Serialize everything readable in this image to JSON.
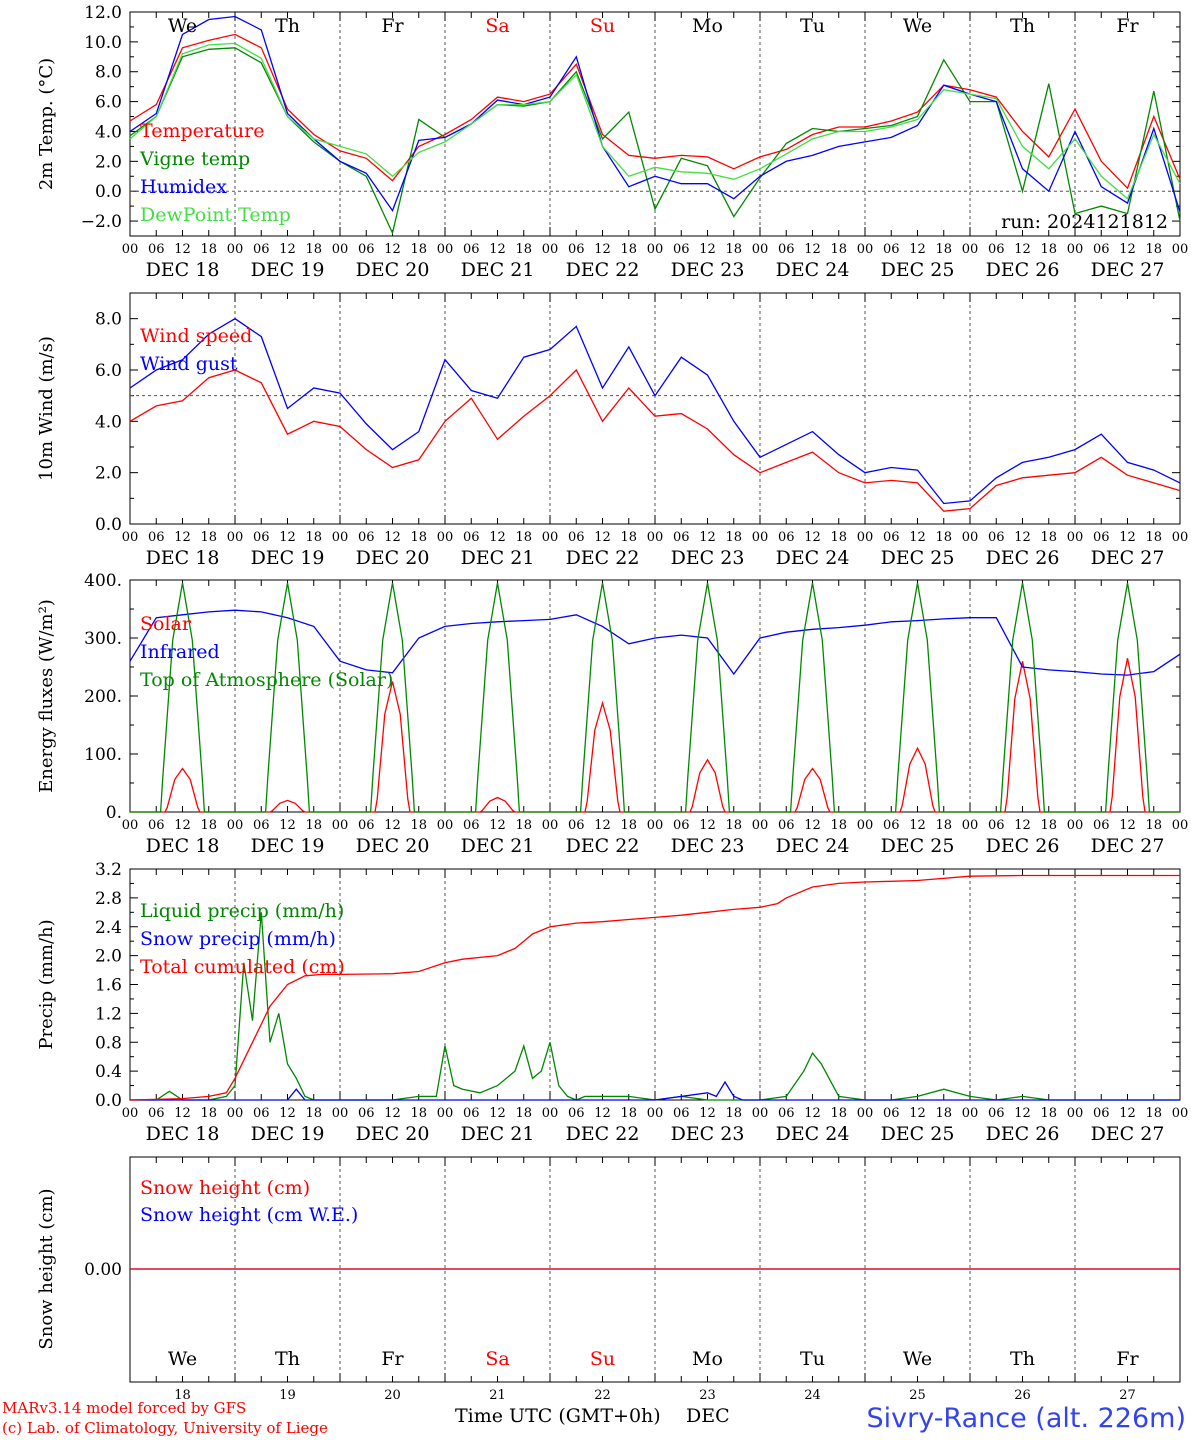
{
  "run_label": "run: 2024121812",
  "footer": {
    "credit_1": "MARv3.14 model forced by GFS",
    "credit_2": "(c) Lab. of Climatology, University of Liege",
    "time_axis": "Time UTC (GMT+0h)",
    "month": "DEC",
    "station": "Sivry-Rance (alt. 226m)"
  },
  "days": {
    "weekday_labels": [
      "We",
      "Th",
      "Fr",
      "Sa",
      "Su",
      "Mo",
      "Tu",
      "We",
      "Th",
      "Fr"
    ],
    "weekday_colors": [
      "#000000",
      "#000000",
      "#000000",
      "#ff0000",
      "#ff0000",
      "#000000",
      "#000000",
      "#000000",
      "#000000",
      "#000000"
    ],
    "date_labels": [
      "DEC 18",
      "DEC 19",
      "DEC 20",
      "DEC 21",
      "DEC 22",
      "DEC 23",
      "DEC 24",
      "DEC 25",
      "DEC 26",
      "DEC 27"
    ],
    "day_numbers": [
      "18",
      "19",
      "20",
      "21",
      "22",
      "23",
      "24",
      "25",
      "26",
      "27"
    ],
    "hour_ticks": [
      "00",
      "06",
      "12",
      "18"
    ],
    "end_hour": "00"
  },
  "chart_data": [
    {
      "type": "line",
      "ylabel": "2m Temp. (°C)",
      "ylim": [
        -3,
        12
      ],
      "yticks": [
        "12.0",
        "10.0",
        "8.0",
        "6.0",
        "4.0",
        "2.0",
        "0.0",
        "−2.0"
      ],
      "reference_line": 0,
      "x_unit": "hours since DEC 18 00 UTC",
      "series": [
        {
          "name": "Temperature",
          "color": "#ff0000",
          "x": [
            0,
            6,
            12,
            18,
            24,
            30,
            36,
            42,
            48,
            54,
            60,
            66,
            72,
            78,
            84,
            90,
            96,
            102,
            108,
            114,
            120,
            126,
            132,
            138,
            144,
            150,
            156,
            162,
            168,
            174,
            180,
            186,
            192,
            198,
            204,
            210,
            216,
            222,
            228,
            234,
            240
          ],
          "y": [
            4.7,
            5.8,
            9.6,
            10.1,
            10.5,
            9.6,
            5.5,
            3.8,
            2.7,
            2.2,
            0.7,
            3.0,
            3.8,
            4.8,
            6.3,
            6.0,
            6.5,
            8.5,
            3.8,
            2.4,
            2.2,
            2.4,
            2.3,
            1.5,
            2.3,
            2.8,
            3.8,
            4.3,
            4.3,
            4.7,
            5.3,
            7.1,
            6.8,
            6.3,
            4.0,
            2.3,
            5.5,
            2.0,
            0.2,
            5.0,
            0.8
          ]
        },
        {
          "name": "Vigne temp",
          "color": "#008800",
          "x": [
            0,
            6,
            12,
            18,
            24,
            30,
            36,
            42,
            48,
            54,
            60,
            66,
            72,
            78,
            84,
            90,
            96,
            102,
            108,
            114,
            120,
            126,
            132,
            138,
            144,
            150,
            156,
            162,
            168,
            174,
            180,
            186,
            192,
            198,
            204,
            210,
            216,
            222,
            228,
            234,
            240
          ],
          "y": [
            3.7,
            5.0,
            9.0,
            9.5,
            9.6,
            8.6,
            5.0,
            3.3,
            2.0,
            1.0,
            -2.8,
            4.8,
            3.6,
            4.5,
            5.8,
            5.7,
            6.0,
            8.0,
            3.5,
            5.3,
            -1.2,
            2.2,
            1.7,
            -1.7,
            0.9,
            3.2,
            4.2,
            4.0,
            4.2,
            4.4,
            5.0,
            8.8,
            6.0,
            6.0,
            0.0,
            7.2,
            -1.5,
            -1.0,
            -1.5,
            6.7,
            -2.0
          ]
        },
        {
          "name": "Humidex",
          "color": "#0000ff",
          "x": [
            0,
            6,
            12,
            18,
            24,
            30,
            36,
            42,
            48,
            54,
            60,
            66,
            72,
            78,
            84,
            90,
            96,
            102,
            108,
            114,
            120,
            126,
            132,
            138,
            144,
            150,
            156,
            162,
            168,
            174,
            180,
            186,
            192,
            198,
            204,
            210,
            216,
            222,
            228,
            234,
            240
          ],
          "y": [
            4.0,
            5.2,
            10.5,
            11.5,
            11.7,
            10.8,
            5.2,
            3.5,
            2.0,
            1.2,
            -1.3,
            3.4,
            3.6,
            4.5,
            6.1,
            5.8,
            6.3,
            9.0,
            3.0,
            0.3,
            1.0,
            0.5,
            0.5,
            -0.5,
            1.0,
            2.0,
            2.4,
            3.0,
            3.3,
            3.6,
            4.4,
            7.1,
            6.5,
            6.0,
            1.5,
            0.0,
            4.0,
            0.3,
            -0.8,
            4.2,
            -1.4
          ]
        },
        {
          "name": "DewPoint Temp",
          "color": "#44dd44",
          "x": [
            0,
            6,
            12,
            18,
            24,
            30,
            36,
            42,
            48,
            54,
            60,
            66,
            72,
            78,
            84,
            90,
            96,
            102,
            108,
            114,
            120,
            126,
            132,
            138,
            144,
            150,
            156,
            162,
            168,
            174,
            180,
            186,
            192,
            198,
            204,
            210,
            216,
            222,
            228,
            234,
            240
          ],
          "y": [
            3.5,
            5.0,
            9.2,
            9.8,
            9.9,
            8.9,
            5.0,
            3.5,
            3.0,
            2.5,
            1.0,
            2.6,
            3.3,
            4.5,
            5.8,
            5.8,
            6.0,
            7.8,
            3.0,
            1.0,
            1.6,
            1.3,
            1.2,
            0.8,
            1.5,
            2.5,
            3.5,
            4.0,
            4.0,
            4.3,
            4.8,
            6.8,
            6.5,
            6.2,
            3.0,
            1.5,
            3.5,
            1.0,
            -0.5,
            3.8,
            0.5
          ]
        }
      ]
    },
    {
      "type": "line",
      "ylabel": "10m Wind (m/s)",
      "ylim": [
        0,
        9
      ],
      "yticks": [
        "8.0",
        "6.0",
        "4.0",
        "2.0",
        "0.0"
      ],
      "reference_line": 5,
      "x_unit": "hours since DEC 18 00 UTC",
      "series": [
        {
          "name": "Wind speed",
          "color": "#ff0000",
          "x": [
            0,
            6,
            12,
            18,
            24,
            30,
            36,
            42,
            48,
            54,
            60,
            66,
            72,
            78,
            84,
            90,
            96,
            102,
            108,
            114,
            120,
            126,
            132,
            138,
            144,
            150,
            156,
            162,
            168,
            174,
            180,
            186,
            192,
            198,
            204,
            210,
            216,
            222,
            228,
            234,
            240
          ],
          "y": [
            4.0,
            4.6,
            4.8,
            5.7,
            6.0,
            5.5,
            3.5,
            4.0,
            3.8,
            2.9,
            2.2,
            2.5,
            4.0,
            4.9,
            3.3,
            4.2,
            5.0,
            6.0,
            4.0,
            5.3,
            4.2,
            4.3,
            3.7,
            2.7,
            2.0,
            2.4,
            2.8,
            2.0,
            1.6,
            1.7,
            1.6,
            0.5,
            0.6,
            1.5,
            1.8,
            1.9,
            2.0,
            2.6,
            1.9,
            1.6,
            1.3
          ]
        },
        {
          "name": "Wind gust",
          "color": "#0000ff",
          "x": [
            0,
            6,
            12,
            18,
            24,
            30,
            36,
            42,
            48,
            54,
            60,
            66,
            72,
            78,
            84,
            90,
            96,
            102,
            108,
            114,
            120,
            126,
            132,
            138,
            144,
            150,
            156,
            162,
            168,
            174,
            180,
            186,
            192,
            198,
            204,
            210,
            216,
            222,
            228,
            234,
            240
          ],
          "y": [
            5.3,
            6.0,
            6.4,
            7.4,
            8.0,
            7.3,
            4.5,
            5.3,
            5.1,
            3.9,
            2.9,
            3.6,
            6.4,
            5.2,
            4.9,
            6.5,
            6.8,
            7.7,
            5.3,
            6.9,
            5.0,
            6.5,
            5.8,
            4.0,
            2.6,
            3.1,
            3.6,
            2.7,
            2.0,
            2.2,
            2.1,
            0.8,
            0.9,
            1.8,
            2.4,
            2.6,
            2.9,
            3.5,
            2.4,
            2.1,
            1.6
          ]
        }
      ]
    },
    {
      "type": "line",
      "ylabel": "Energy fluxes (W/m²)",
      "ylim": [
        0,
        400
      ],
      "yticks": [
        "400.",
        "300.",
        "200.",
        "100.",
        "0."
      ],
      "x_unit": "hours since DEC 18 00 UTC",
      "peak_hour_of_day": 12,
      "series": [
        {
          "name": "Solar",
          "color": "#ff0000",
          "daily_peaks": [
            75,
            20,
            225,
            25,
            188,
            90,
            75,
            110,
            260,
            265
          ]
        },
        {
          "name": "Infrared",
          "color": "#0000ff",
          "x": [
            0,
            6,
            12,
            18,
            24,
            30,
            36,
            42,
            48,
            54,
            60,
            66,
            72,
            78,
            84,
            90,
            96,
            102,
            108,
            114,
            120,
            126,
            132,
            138,
            144,
            150,
            156,
            162,
            168,
            174,
            180,
            186,
            192,
            198,
            204,
            210,
            216,
            222,
            228,
            234,
            240
          ],
          "y": [
            260,
            335,
            340,
            345,
            348,
            345,
            335,
            320,
            260,
            245,
            240,
            300,
            320,
            325,
            328,
            330,
            332,
            340,
            320,
            290,
            300,
            305,
            300,
            238,
            300,
            310,
            315,
            318,
            322,
            328,
            330,
            333,
            335,
            335,
            250,
            245,
            242,
            238,
            236,
            242,
            272
          ]
        },
        {
          "name": "Top of Atmosphere (Solar)",
          "color": "#008800",
          "daily_peaks": [
            395,
            395,
            395,
            395,
            395,
            395,
            395,
            395,
            395,
            395
          ]
        }
      ]
    },
    {
      "type": "line",
      "ylabel": "Precip (mm/h)",
      "ylim": [
        0,
        3.2
      ],
      "yticks": [
        "3.2",
        "2.8",
        "2.4",
        "2.0",
        "1.6",
        "1.2",
        "0.8",
        "0.4",
        "0.0"
      ],
      "x_unit": "hours since DEC 18 00 UTC",
      "series": [
        {
          "name": "Liquid precip (mm/h)",
          "color": "#008800",
          "x": [
            0,
            6,
            9,
            12,
            18,
            22,
            24,
            26,
            28,
            30,
            32,
            34,
            36,
            38,
            40,
            42,
            48,
            60,
            66,
            70,
            72,
            74,
            76,
            80,
            84,
            88,
            90,
            92,
            94,
            96,
            98,
            100,
            102,
            104,
            108,
            114,
            120,
            126,
            132,
            138,
            144,
            150,
            154,
            156,
            158,
            162,
            168,
            174,
            180,
            186,
            192,
            198,
            204,
            210,
            216,
            222,
            228,
            234,
            240
          ],
          "y": [
            0,
            0,
            0.12,
            0,
            0,
            0.05,
            0.2,
            1.9,
            1.1,
            2.6,
            0.8,
            1.2,
            0.5,
            0.3,
            0.05,
            0,
            0,
            0,
            0.05,
            0.05,
            0.75,
            0.2,
            0.15,
            0.1,
            0.2,
            0.4,
            0.75,
            0.3,
            0.4,
            0.8,
            0.2,
            0.05,
            0,
            0.05,
            0.05,
            0.05,
            0,
            0.05,
            0,
            0,
            0,
            0.05,
            0.4,
            0.65,
            0.5,
            0.05,
            0,
            0,
            0.05,
            0.15,
            0.05,
            0,
            0.05,
            0,
            0,
            0,
            0,
            0,
            0
          ]
        },
        {
          "name": "Snow precip (mm/h)",
          "color": "#0000ff",
          "x": [
            0,
            18,
            24,
            36,
            38,
            40,
            48,
            96,
            120,
            132,
            134,
            136,
            138,
            140,
            144,
            192,
            240
          ],
          "y": [
            0,
            0,
            0,
            0,
            0.15,
            0,
            0,
            0,
            0,
            0.1,
            0.05,
            0.25,
            0.05,
            0,
            0,
            0,
            0
          ]
        },
        {
          "name": "Total cumulated (cm)",
          "color": "#ff0000",
          "x": [
            0,
            12,
            18,
            22,
            24,
            28,
            32,
            36,
            40,
            44,
            48,
            60,
            66,
            72,
            76,
            84,
            88,
            90,
            92,
            96,
            102,
            108,
            114,
            120,
            126,
            132,
            138,
            144,
            148,
            150,
            156,
            162,
            168,
            174,
            180,
            192,
            204,
            216,
            228,
            240
          ],
          "y": [
            0,
            0.02,
            0.05,
            0.1,
            0.3,
            0.8,
            1.3,
            1.6,
            1.72,
            1.74,
            1.74,
            1.75,
            1.78,
            1.9,
            1.95,
            2.0,
            2.1,
            2.2,
            2.3,
            2.4,
            2.45,
            2.47,
            2.5,
            2.53,
            2.56,
            2.6,
            2.64,
            2.67,
            2.72,
            2.8,
            2.95,
            3.0,
            3.02,
            3.03,
            3.04,
            3.1,
            3.11,
            3.11,
            3.11,
            3.11
          ]
        }
      ]
    },
    {
      "type": "line",
      "ylabel": "Snow height (cm)",
      "ylim": [
        -1,
        1
      ],
      "yticks": [
        "0.00"
      ],
      "series": [
        {
          "name": "Snow height (cm)",
          "color": "#ff0000",
          "x": [
            0,
            240
          ],
          "y": [
            0,
            0
          ]
        },
        {
          "name": "Snow height (cm W.E.)",
          "color": "#0000ff",
          "x": [
            0,
            240
          ],
          "y": [
            0,
            0
          ]
        }
      ]
    }
  ]
}
